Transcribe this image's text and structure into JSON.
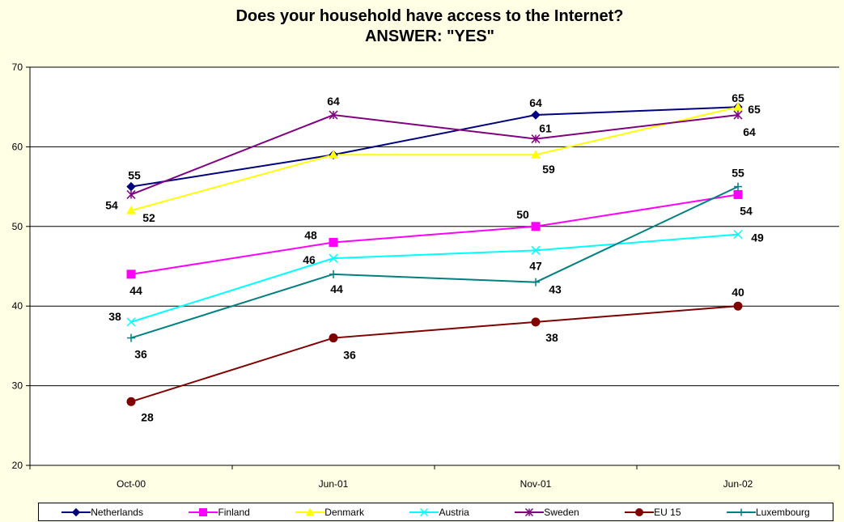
{
  "chart_data": {
    "type": "line",
    "title": "Does your household have access to the Internet?",
    "subtitle": "ANSWER: \"YES\"",
    "categories": [
      "Oct-00",
      "Jun-01",
      "Nov-01",
      "Jun-02"
    ],
    "ylim": [
      20,
      70
    ],
    "yticks": [
      20,
      30,
      40,
      50,
      60,
      70
    ],
    "grid": true,
    "legend_position": "bottom",
    "series": [
      {
        "name": "Netherlands",
        "values": [
          55,
          59,
          64,
          65
        ],
        "color": "#000080",
        "marker": "diamond"
      },
      {
        "name": "Finland",
        "values": [
          44,
          48,
          50,
          54
        ],
        "color": "#ff00ff",
        "marker": "square"
      },
      {
        "name": "Denmark",
        "values": [
          52,
          59,
          59,
          65
        ],
        "color": "#ffff00",
        "marker": "triangle"
      },
      {
        "name": "Austria",
        "values": [
          38,
          46,
          47,
          49
        ],
        "color": "#00ffff",
        "marker": "x"
      },
      {
        "name": "Sweden",
        "values": [
          54,
          64,
          61,
          64
        ],
        "color": "#800080",
        "marker": "star"
      },
      {
        "name": "EU 15",
        "values": [
          28,
          36,
          38,
          40
        ],
        "color": "#800000",
        "marker": "circle"
      },
      {
        "name": "Luxembourg",
        "values": [
          36,
          44,
          43,
          55
        ],
        "color": "#008080",
        "marker": "plus"
      }
    ]
  }
}
